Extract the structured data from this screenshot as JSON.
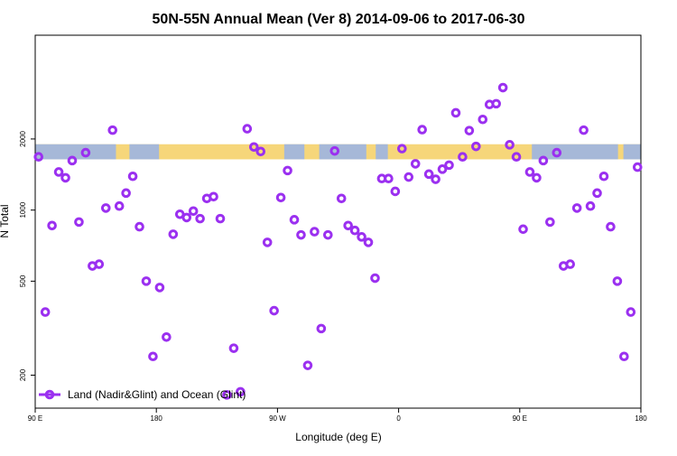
{
  "chart_data": {
    "type": "scatter",
    "title": "50N-55N Annual Mean (Ver 8)   2014-09-06 to 2017-06-30",
    "xlabel": "Longitude (deg E)",
    "ylabel": "N Total",
    "y_scale": "log",
    "xlim": [
      90,
      540
    ],
    "ylim": [
      145,
      5500
    ],
    "x_ticks": [
      {
        "value": 90,
        "label": "90 E"
      },
      {
        "value": 180,
        "label": "180"
      },
      {
        "value": 270,
        "label": "90 W"
      },
      {
        "value": 360,
        "label": "0"
      },
      {
        "value": 450,
        "label": "90 E"
      },
      {
        "value": 540,
        "label": "180"
      }
    ],
    "y_ticks": [
      {
        "value": 200,
        "label": "200"
      },
      {
        "value": 500,
        "label": "500"
      },
      {
        "value": 1000,
        "label": "1000"
      },
      {
        "value": 2000,
        "label": "2000"
      }
    ],
    "legend": {
      "label": "Land (Nadir&Glint) and Ocean (Glint)",
      "position": "bottom-left"
    },
    "colors": {
      "series": "#9b30f0",
      "land": "#f6d67a",
      "ocean": "#a6b8d8",
      "axis": "#000000"
    },
    "map_band": {
      "lat_range": [
        "50N",
        "55N"
      ],
      "y_value_range": [
        1640,
        1900
      ]
    },
    "series": [
      {
        "name": "Land (Nadir&Glint) and Ocean (Glint)",
        "x": [
          92.5,
          97.5,
          102.5,
          107.5,
          112.5,
          117.5,
          122.5,
          127.5,
          132.5,
          137.5,
          142.5,
          147.5,
          152.5,
          157.5,
          162.5,
          167.5,
          172.5,
          177.5,
          182.5,
          187.5,
          192.5,
          197.5,
          202.5,
          207.5,
          212.5,
          217.5,
          222.5,
          227.5,
          232.5,
          237.5,
          242.5,
          247.5,
          252.5,
          257.5,
          262.5,
          267.5,
          272.5,
          277.5,
          282.5,
          287.5,
          292.5,
          297.5,
          302.5,
          307.5,
          312.5,
          317.5,
          322.5,
          327.5,
          332.5,
          337.5,
          342.5,
          347.5,
          352.5,
          357.5,
          362.5,
          367.5,
          372.5,
          377.5,
          382.5,
          387.5,
          392.5,
          397.5,
          402.5,
          407.5,
          412.5,
          417.5,
          422.5,
          427.5,
          432.5,
          437.5,
          442.5,
          447.5,
          452.5,
          457.5,
          462.5,
          467.5,
          472.5,
          477.5,
          482.5,
          487.5,
          492.5,
          497.5,
          502.5,
          507.5,
          512.5,
          517.5,
          522.5,
          527.5,
          532.5,
          537.5
        ],
        "values": [
          1680,
          370,
          860,
          1450,
          1370,
          1620,
          890,
          1750,
          580,
          590,
          1020,
          2180,
          1040,
          1180,
          1390,
          850,
          500,
          240,
          470,
          290,
          790,
          960,
          930,
          990,
          920,
          1120,
          1140,
          920,
          165,
          260,
          170,
          2210,
          1850,
          1770,
          730,
          375,
          1130,
          1470,
          910,
          785,
          220,
          810,
          315,
          785,
          1780,
          1120,
          860,
          820,
          770,
          730,
          515,
          1360,
          1360,
          1200,
          1820,
          1380,
          1570,
          2190,
          1420,
          1350,
          1490,
          1550,
          2580,
          1680,
          2170,
          1860,
          2420,
          2800,
          2820,
          3300,
          1890,
          1680,
          830,
          1450,
          1370,
          1620,
          890,
          1750,
          580,
          590,
          1020,
          2180,
          1040,
          1180,
          1390,
          850,
          500,
          240,
          370,
          1520
        ]
      }
    ]
  }
}
